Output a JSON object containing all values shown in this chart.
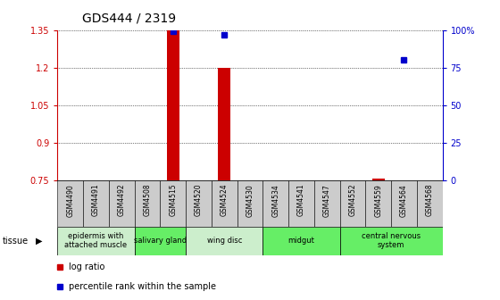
{
  "title": "GDS444 / 2319",
  "samples": [
    "GSM4490",
    "GSM4491",
    "GSM4492",
    "GSM4508",
    "GSM4515",
    "GSM4520",
    "GSM4524",
    "GSM4530",
    "GSM4534",
    "GSM4541",
    "GSM4547",
    "GSM4552",
    "GSM4559",
    "GSM4564",
    "GSM4568"
  ],
  "log_ratio": [
    null,
    null,
    null,
    null,
    1.35,
    null,
    1.2,
    null,
    null,
    null,
    null,
    null,
    0.754,
    null,
    null
  ],
  "percentile_rank": [
    null,
    null,
    null,
    null,
    99,
    null,
    97,
    null,
    null,
    null,
    null,
    null,
    null,
    80,
    null
  ],
  "ylim_left": [
    0.75,
    1.35
  ],
  "ylim_right": [
    0,
    100
  ],
  "yticks_left": [
    0.75,
    0.9,
    1.05,
    1.2,
    1.35
  ],
  "yticks_right": [
    0,
    25,
    50,
    75,
    100
  ],
  "ytick_labels_left": [
    "0.75",
    "0.9",
    "1.05",
    "1.2",
    "1.35"
  ],
  "ytick_labels_right": [
    "0",
    "25",
    "50",
    "75",
    "100%"
  ],
  "baseline": 0.75,
  "tissue_groups": [
    {
      "label": "epidermis with\nattached muscle",
      "start": 0,
      "end": 3,
      "bright": false
    },
    {
      "label": "salivary gland",
      "start": 3,
      "end": 5,
      "bright": true
    },
    {
      "label": "wing disc",
      "start": 5,
      "end": 8,
      "bright": false
    },
    {
      "label": "midgut",
      "start": 8,
      "end": 11,
      "bright": true
    },
    {
      "label": "central nervous\nsystem",
      "start": 11,
      "end": 15,
      "bright": true
    }
  ],
  "bar_color": "#cc0000",
  "dot_color": "#0000cc",
  "left_axis_color": "#cc0000",
  "right_axis_color": "#0000cc",
  "sample_col_color": "#cccccc",
  "tissue_color_light": "#cceecc",
  "tissue_color_bright": "#66ee66",
  "legend_labels": [
    "log ratio",
    "percentile rank within the sample"
  ]
}
